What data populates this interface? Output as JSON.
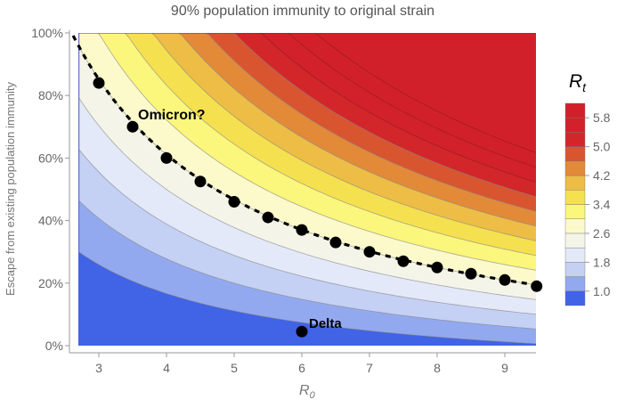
{
  "chart_data": {
    "type": "contour",
    "title": "90% population immunity to original strain",
    "xlabel": "R",
    "xlabel_sub": "0",
    "ylabel": "Escape from existing population immunity",
    "xlim": [
      2.71,
      9.47
    ],
    "ylim": [
      0,
      100
    ],
    "population_immunity": 0.9,
    "formula": "Rt = R0 * (1 - immunity * (1 - escape))",
    "x_ticks": [
      3,
      4,
      5,
      6,
      7,
      8,
      9
    ],
    "x_tick_labels": [
      "3",
      "4",
      "5",
      "6",
      "7",
      "8",
      "9"
    ],
    "y_ticks": [
      0,
      20,
      40,
      60,
      80,
      100
    ],
    "y_tick_labels": [
      "0%",
      "20%",
      "40%",
      "60%",
      "80%",
      "100%"
    ],
    "contour_levels": [
      1.0,
      1.4,
      1.8,
      2.2,
      2.6,
      3.0,
      3.4,
      3.8,
      4.2,
      4.6,
      5.0,
      5.4,
      5.8,
      6.2
    ],
    "band_colors": [
      "#4163e6",
      "#93a9ef",
      "#c4d0f4",
      "#e3e9f9",
      "#f4f5e8",
      "#fcf9cb",
      "#fbf67c",
      "#f5e050",
      "#edbd45",
      "#e28a38",
      "#d8552f",
      "#d2262b",
      "#d2212b",
      "#d2202b",
      "#d2202b"
    ],
    "legend": {
      "title": "R",
      "title_sub": "t",
      "tick_labels": [
        "1.0",
        "1.8",
        "2.6",
        "3.4",
        "4.2",
        "5.0",
        "5.8"
      ],
      "tick_values": [
        1.0,
        1.8,
        2.6,
        3.4,
        4.2,
        5.0,
        5.8
      ],
      "range": [
        0.6,
        6.2
      ]
    },
    "dashed_curve_level": 2.6,
    "series": [
      {
        "name": "Omicron?",
        "x": [
          3,
          3.5,
          4,
          4.5,
          5,
          5.5,
          6,
          6.5,
          7,
          7.5,
          8,
          8.5,
          9,
          9.47
        ],
        "y": [
          84,
          70,
          60,
          52.5,
          46,
          41,
          37,
          33,
          30,
          27,
          25,
          23,
          21,
          19
        ]
      },
      {
        "name": "Delta",
        "x": [
          6
        ],
        "y": [
          4.5
        ]
      }
    ],
    "annotations": [
      "Omicron?",
      "Delta"
    ]
  }
}
